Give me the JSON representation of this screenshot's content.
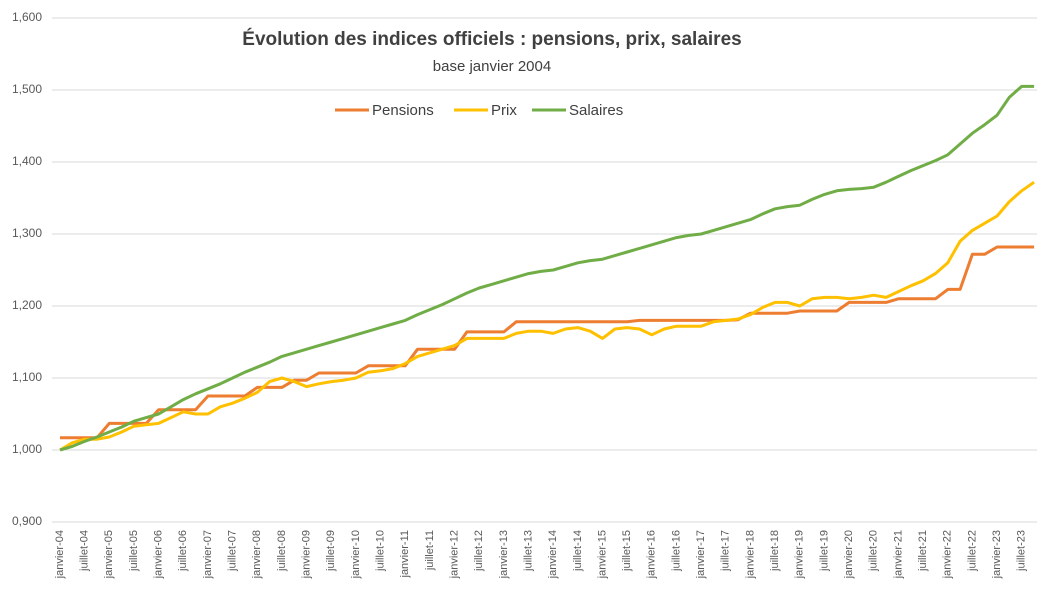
{
  "chart_data": {
    "type": "line",
    "title": "Évolution des indices officiels : pensions, prix, salaires",
    "subtitle": "base janvier 2004",
    "categories": [
      "janvier-04",
      null,
      "juillet-04",
      null,
      "janvier-05",
      null,
      "juillet-05",
      null,
      "janvier-06",
      null,
      "juillet-06",
      null,
      "janvier-07",
      null,
      "juillet-07",
      null,
      "janvier-08",
      null,
      "juillet-08",
      null,
      "janvier-09",
      null,
      "juillet-09",
      null,
      "janvier-10",
      null,
      "juillet-10",
      null,
      "janvier-11",
      null,
      "juillet-11",
      null,
      "janvier-12",
      null,
      "juillet-12",
      null,
      "janvier-13",
      null,
      "juillet-13",
      null,
      "janvier-14",
      null,
      "juillet-14",
      null,
      "janvier-15",
      null,
      "juillet-15",
      null,
      "janvier-16",
      null,
      "juillet-16",
      null,
      "janvier-17",
      null,
      "juillet-17",
      null,
      "janvier-18",
      null,
      "juillet-18",
      null,
      "janvier-19",
      null,
      "juillet-19",
      null,
      "janvier-20",
      null,
      "juillet-20",
      null,
      "janvier-21",
      null,
      "juillet-21",
      null,
      "janvier-22",
      null,
      "juillet-22",
      null,
      "janvier-23",
      null,
      "juillet-23",
      null
    ],
    "series": [
      {
        "name": "Pensions",
        "color": "#ed7d31",
        "values": [
          1.017,
          1.017,
          1.017,
          1.017,
          1.037,
          1.037,
          1.037,
          1.037,
          1.056,
          1.056,
          1.056,
          1.056,
          1.075,
          1.075,
          1.075,
          1.075,
          1.087,
          1.087,
          1.087,
          1.097,
          1.097,
          1.107,
          1.107,
          1.107,
          1.107,
          1.117,
          1.117,
          1.117,
          1.117,
          1.14,
          1.14,
          1.14,
          1.14,
          1.164,
          1.164,
          1.164,
          1.164,
          1.178,
          1.178,
          1.178,
          1.178,
          1.178,
          1.178,
          1.178,
          1.178,
          1.178,
          1.178,
          1.18,
          1.18,
          1.18,
          1.18,
          1.18,
          1.18,
          1.18,
          1.18,
          1.181,
          1.19,
          1.19,
          1.19,
          1.19,
          1.193,
          1.193,
          1.193,
          1.193,
          1.205,
          1.205,
          1.205,
          1.205,
          1.21,
          1.21,
          1.21,
          1.21,
          1.223,
          1.223,
          1.272,
          1.272,
          1.282,
          1.282,
          1.282,
          1.282
        ]
      },
      {
        "name": "Prix",
        "color": "#ffc000",
        "values": [
          1.0,
          1.01,
          1.015,
          1.015,
          1.018,
          1.025,
          1.033,
          1.035,
          1.037,
          1.045,
          1.053,
          1.05,
          1.05,
          1.06,
          1.065,
          1.072,
          1.08,
          1.095,
          1.1,
          1.095,
          1.088,
          1.092,
          1.095,
          1.097,
          1.1,
          1.108,
          1.11,
          1.113,
          1.12,
          1.13,
          1.135,
          1.14,
          1.145,
          1.155,
          1.155,
          1.155,
          1.155,
          1.162,
          1.165,
          1.165,
          1.162,
          1.168,
          1.17,
          1.165,
          1.155,
          1.168,
          1.17,
          1.168,
          1.16,
          1.168,
          1.172,
          1.172,
          1.172,
          1.178,
          1.18,
          1.182,
          1.188,
          1.198,
          1.205,
          1.205,
          1.2,
          1.21,
          1.212,
          1.212,
          1.21,
          1.212,
          1.215,
          1.212,
          1.22,
          1.228,
          1.235,
          1.245,
          1.26,
          1.29,
          1.305,
          1.315,
          1.325,
          1.345,
          1.36,
          1.372
        ]
      },
      {
        "name": "Salaires",
        "color": "#70ad47",
        "values": [
          1.0,
          1.005,
          1.012,
          1.018,
          1.025,
          1.032,
          1.04,
          1.045,
          1.05,
          1.06,
          1.07,
          1.078,
          1.085,
          1.092,
          1.1,
          1.108,
          1.115,
          1.122,
          1.13,
          1.135,
          1.14,
          1.145,
          1.15,
          1.155,
          1.16,
          1.165,
          1.17,
          1.175,
          1.18,
          1.188,
          1.195,
          1.202,
          1.21,
          1.218,
          1.225,
          1.23,
          1.235,
          1.24,
          1.245,
          1.248,
          1.25,
          1.255,
          1.26,
          1.263,
          1.265,
          1.27,
          1.275,
          1.28,
          1.285,
          1.29,
          1.295,
          1.298,
          1.3,
          1.305,
          1.31,
          1.315,
          1.32,
          1.328,
          1.335,
          1.338,
          1.34,
          1.348,
          1.355,
          1.36,
          1.362,
          1.363,
          1.365,
          1.372,
          1.38,
          1.388,
          1.395,
          1.402,
          1.41,
          1.425,
          1.44,
          1.452,
          1.465,
          1.49,
          1.505,
          1.505
        ]
      }
    ],
    "ylim": [
      0.9,
      1.6
    ],
    "yticks": [
      {
        "value": 0.9,
        "label": "0,900"
      },
      {
        "value": 1.0,
        "label": "1,000"
      },
      {
        "value": 1.1,
        "label": "1,100"
      },
      {
        "value": 1.2,
        "label": "1,200"
      },
      {
        "value": 1.3,
        "label": "1,300"
      },
      {
        "value": 1.4,
        "label": "1,400"
      },
      {
        "value": 1.5,
        "label": "1,500"
      },
      {
        "value": 1.6,
        "label": "1,600"
      }
    ],
    "grid": true,
    "legend": "top"
  }
}
